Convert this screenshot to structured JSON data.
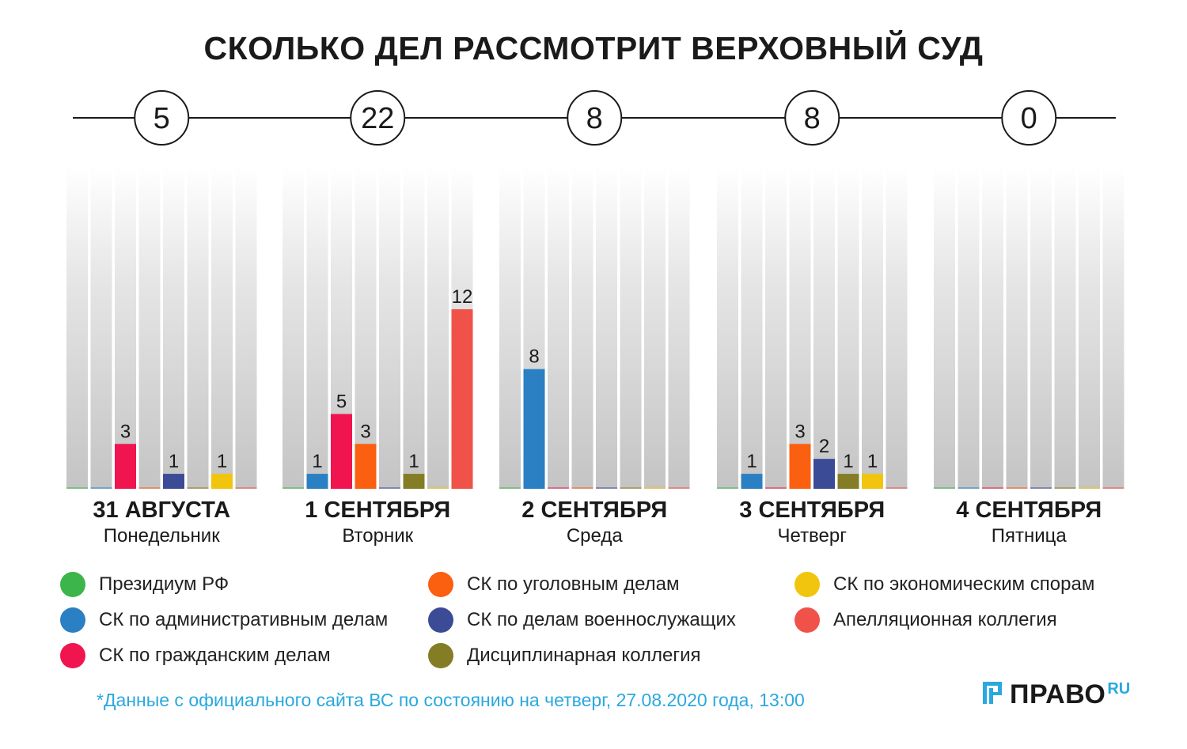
{
  "title": "СКОЛЬКО ДЕЛ РАССМОТРИТ ВЕРХОВНЫЙ СУД",
  "chart_data": {
    "type": "bar",
    "title": "СКОЛЬКО ДЕЛ РАССМОТРИТ ВЕРХОВНЫЙ СУД",
    "ylim": [
      0,
      20
    ],
    "categories": [
      {
        "date": "31 АВГУСТА",
        "weekday": "Понедельник",
        "total": "5"
      },
      {
        "date": "1 СЕНТЯБРЯ",
        "weekday": "Вторник",
        "total": "22"
      },
      {
        "date": "2 СЕНТЯБРЯ",
        "weekday": "Среда",
        "total": "8"
      },
      {
        "date": "3 СЕНТЯБРЯ",
        "weekday": "Четверг",
        "total": "8"
      },
      {
        "date": "4 СЕНТЯБРЯ",
        "weekday": "Пятница",
        "total": "0"
      }
    ],
    "series": [
      {
        "name": "Президиум РФ",
        "color": "#3cb54a",
        "values": [
          0,
          0,
          0,
          0,
          0
        ]
      },
      {
        "name": "СК по административным делам",
        "color": "#2b7fc3",
        "values": [
          0,
          1,
          8,
          1,
          0
        ]
      },
      {
        "name": "СК по гражданским делам",
        "color": "#f0154f",
        "values": [
          3,
          5,
          0,
          0,
          0
        ]
      },
      {
        "name": "СК по уголовным делам",
        "color": "#fb5f10",
        "values": [
          0,
          3,
          0,
          3,
          0
        ]
      },
      {
        "name": "СК по делам военнослужащих",
        "color": "#3c4b96",
        "values": [
          1,
          0,
          0,
          2,
          0
        ]
      },
      {
        "name": "Дисциплинарная коллегия",
        "color": "#857d25",
        "values": [
          0,
          1,
          0,
          1,
          0
        ]
      },
      {
        "name": "СК по экономическим спорам",
        "color": "#f1c50d",
        "values": [
          1,
          0,
          0,
          1,
          0
        ]
      },
      {
        "name": "Апелляционная коллегия",
        "color": "#f0524a",
        "values": [
          0,
          12,
          0,
          0,
          0
        ]
      }
    ]
  },
  "footnote": "*Данные с официального сайта ВС по состоянию на четверг, 27.08.2020 года, 13:00",
  "logo": {
    "text": "ПРАВО",
    "suffix": "RU",
    "accent": "#2aa8e0"
  }
}
